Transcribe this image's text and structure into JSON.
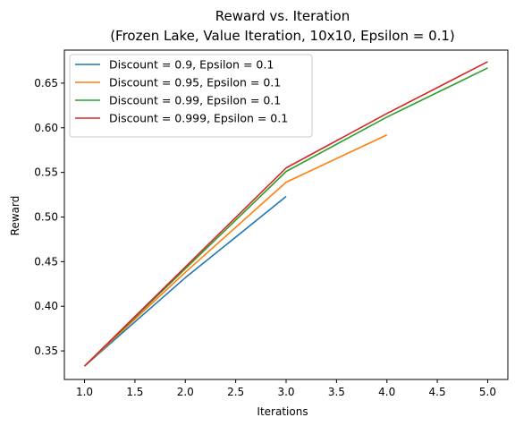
{
  "chart_data": {
    "type": "line",
    "title": "Reward vs. Iteration",
    "subtitle": "(Frozen Lake, Value Iteration, 10x10, Epsilon = 0.1)",
    "xlabel": "Iterations",
    "ylabel": "Reward",
    "xlim": [
      0.8,
      5.2
    ],
    "ylim": [
      0.318,
      0.687
    ],
    "xticks": [
      1.0,
      1.5,
      2.0,
      2.5,
      3.0,
      3.5,
      4.0,
      4.5,
      5.0
    ],
    "xtick_labels": [
      "1.0",
      "1.5",
      "2.0",
      "2.5",
      "3.0",
      "3.5",
      "4.0",
      "4.5",
      "5.0"
    ],
    "yticks": [
      0.35,
      0.4,
      0.45,
      0.5,
      0.55,
      0.6,
      0.65
    ],
    "ytick_labels": [
      "0.35",
      "0.40",
      "0.45",
      "0.50",
      "0.55",
      "0.60",
      "0.65"
    ],
    "grid": false,
    "legend_position": "top-left",
    "series": [
      {
        "name": "Discount = 0.9, Epsilon = 0.1",
        "color": "#1f77b4",
        "x": [
          1,
          2,
          3
        ],
        "y": [
          0.333,
          0.432,
          0.523
        ]
      },
      {
        "name": "Discount = 0.95, Epsilon = 0.1",
        "color": "#ff7f0e",
        "x": [
          1,
          2,
          3,
          4
        ],
        "y": [
          0.333,
          0.438,
          0.539,
          0.592
        ]
      },
      {
        "name": "Discount = 0.99, Epsilon = 0.1",
        "color": "#2ca02c",
        "x": [
          1,
          2,
          3,
          4,
          5
        ],
        "y": [
          0.333,
          0.442,
          0.551,
          0.612,
          0.667
        ]
      },
      {
        "name": "Discount = 0.999, Epsilon = 0.1",
        "color": "#d62728",
        "x": [
          1,
          2,
          3,
          4,
          5
        ],
        "y": [
          0.333,
          0.444,
          0.555,
          0.616,
          0.674
        ]
      }
    ]
  }
}
